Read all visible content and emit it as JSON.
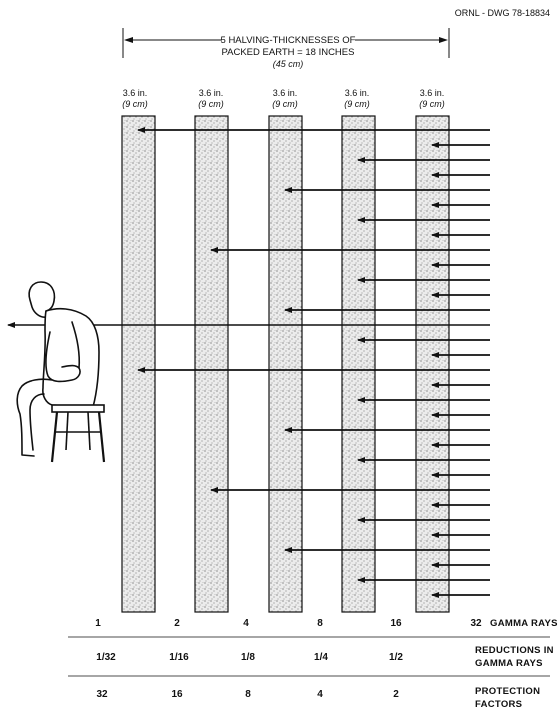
{
  "drawing_id": "ORNL - DWG 78-18834",
  "header": {
    "line1": "5 HALVING-THICKNESSES OF",
    "line2": "PACKED EARTH = 18 INCHES",
    "line3": "(45 cm)"
  },
  "layers": [
    {
      "thickness_in": "3.6 in.",
      "thickness_cm": "(9 cm)",
      "gamma_rays": "1",
      "reduction": "1/32",
      "protection": "32"
    },
    {
      "thickness_in": "3.6 in.",
      "thickness_cm": "(9 cm)",
      "gamma_rays": "2",
      "reduction": "1/16",
      "protection": "16"
    },
    {
      "thickness_in": "3.6 in.",
      "thickness_cm": "(9 cm)",
      "gamma_rays": "4",
      "reduction": "1/8",
      "protection": "8"
    },
    {
      "thickness_in": "3.6 in.",
      "thickness_cm": "(9 cm)",
      "gamma_rays": "8",
      "reduction": "1/4",
      "protection": "4"
    },
    {
      "thickness_in": "3.6 in.",
      "thickness_cm": "(9 cm)",
      "gamma_rays": "16",
      "reduction": "1/2",
      "protection": "2"
    }
  ],
  "incoming_rays": "32",
  "row_labels": {
    "gamma": "GAMMA RAYS",
    "reduction_l1": "REDUCTIONS IN",
    "reduction_l2": "GAMMA RAYS",
    "protection_l1": "PROTECTION",
    "protection_l2": "FACTORS"
  },
  "colors": {
    "ink": "#111111",
    "earth_fill": "#c9c9c9",
    "paper": "#ffffff"
  }
}
